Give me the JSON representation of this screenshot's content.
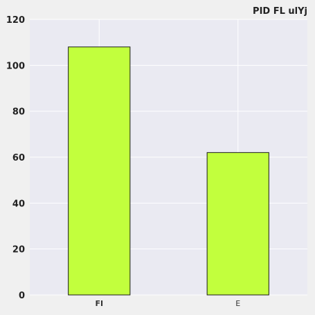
{
  "chart_data": {
    "type": "bar",
    "title": "PID FL ulYj",
    "categories": [
      "FI",
      "E"
    ],
    "values": [
      108,
      62
    ],
    "ylim": [
      0,
      120
    ],
    "yticks": [
      0,
      20,
      40,
      60,
      80,
      100,
      120
    ],
    "xlabel": "",
    "ylabel": "",
    "grid": true,
    "legend": "none",
    "bold_categories": [
      "FI"
    ]
  },
  "colors": {
    "bar_fill": "#c2ff3d",
    "bar_stroke": "#1a1a1a",
    "plot_bg": "#eaeaf2",
    "page_bg": "#f0f0f0",
    "grid": "#ffffff"
  }
}
